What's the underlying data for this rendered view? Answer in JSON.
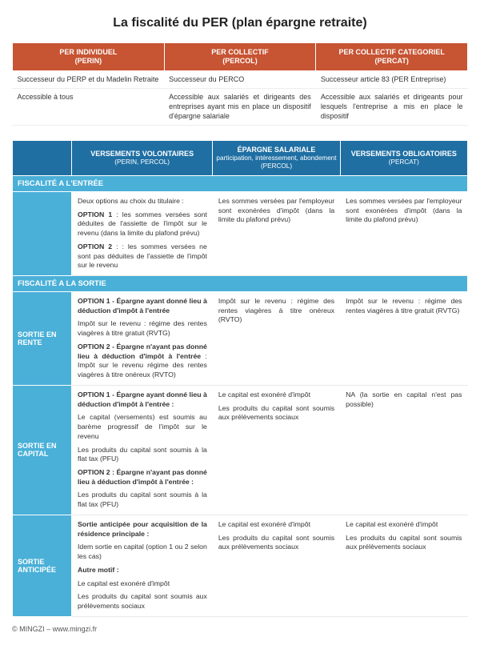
{
  "title": "La fiscalité du PER (plan épargne retraite)",
  "colors": {
    "header1_bg": "#c75433",
    "header2_bg": "#1f6fa3",
    "section_bg": "#4ab0d8",
    "text": "#333333",
    "bg": "#ffffff"
  },
  "table1": {
    "headers": [
      {
        "line1": "PER INDIVIDUEL",
        "line2": "(PERIN)"
      },
      {
        "line1": "PER COLLECTIF",
        "line2": "(PERCOL)"
      },
      {
        "line1": "PER COLLECTIF CATEGORIEL",
        "line2": "(PERCAT)"
      }
    ],
    "row1": [
      "Successeur du PERP et du Madelin Retraite",
      "Successeur du PERCO",
      "Successeur article 83 (PER Entreprise)"
    ],
    "row2": [
      "Accessible à tous",
      "Accessible aux salariés et dirigeants des entreprises ayant mis en place un dispositif d'épargne salariale",
      "Accessible aux salariés et dirigeants pour lesquels l'entreprise a mis en place le dispositif"
    ]
  },
  "table2": {
    "headers": [
      {
        "line1": "",
        "sub": ""
      },
      {
        "line1": "VERSEMENTS VOLONTAIRES",
        "sub": "(PERIN, PERCOL)"
      },
      {
        "line1": "ÉPARGNE SALARIALE",
        "sub": "participation, intéressement, abondement (PERCOL)"
      },
      {
        "line1": "VERSEMENTS OBLIGATOIRES",
        "sub": "(PERCAT)"
      }
    ],
    "section1": "FISCALITÉ A L'ENTRÉE",
    "entry": {
      "c1_intro": "Deux options au choix du titulaire :",
      "c1_opt1_label": "OPTION 1",
      "c1_opt1_text": " : les sommes versées sont déduites de l'assiette de l'impôt sur le revenu (dans la limite du plafond prévu)",
      "c1_opt2_label": "OPTION 2",
      "c1_opt2_text": " : : les sommes versées ne sont pas déduites de l'assiette de l'impôt sur le revenu",
      "c2": "Les sommes versées par l'employeur sont exonérées d'impôt (dans la limite du plafond prévu)",
      "c3": "Les sommes versées par l'employeur sont exonérées d'impôt (dans la limite du plafond prévu)"
    },
    "section2": "FISCALITÉ  A LA SORTIE",
    "rows": [
      {
        "label": "SORTIE EN RENTE",
        "c1_o1_label": "OPTION 1 - Épargne ayant donné lieu à déduction d'impôt à l'entrée",
        "c1_o1_text": "Impôt sur le revenu : régime des rentes viagères à titre gratuit (RVTG)",
        "c1_o2_label": "OPTION 2 - Épargne n'ayant pas donné lieu à déduction d'impôt à l'entrée",
        "c1_o2_text": " : Impôt sur le revenu régime des rentes viagères à titre onéreux (RVTO)",
        "c2": "Impôt sur le revenu : régime des rentes viagères à titre onéreux (RVTO)",
        "c3": "Impôt sur le revenu : régime des rentes viagères à titre gratuit (RVTG)"
      },
      {
        "label": "SORTIE EN CAPITAL",
        "c1_o1_label": "OPTION 1 - Épargne ayant donné lieu à déduction d'impôt à l'entrée :",
        "c1_o1_text_a": "Le capital (versements) est soumis au barème progressif de l'impôt sur le revenu",
        "c1_o1_text_b": "Les produits du capital sont soumis à la flat tax (PFU)",
        "c1_o2_label": "OPTION 2 : Épargne n'ayant pas donné lieu à déduction d'impôt à l'entrée :",
        "c1_o2_text": "Les produits du capital sont soumis à la flat tax (PFU)",
        "c2_a": "Le capital est exonéré d'impôt",
        "c2_b": "Les produits du capital sont soumis aux prélèvements sociaux",
        "c3": "NA (la sortie en capital n'est pas possible)"
      },
      {
        "label": "SORTIE ANTICIPÉE",
        "c1_a_label": "Sortie anticipée pour acquisition de la résidence principale :",
        "c1_a_text": "Idem sortie en capital (option 1 ou 2 selon les cas)",
        "c1_b_label": "Autre motif :",
        "c1_b_text_a": "Le capital est exonéré d'impôt",
        "c1_b_text_b": "Les produits du capital sont soumis aux prélèvements sociaux",
        "c2_a": "Le capital est exonéré d'impôt",
        "c2_b": "Les produits du capital sont soumis aux prélèvements sociaux",
        "c3_a": "Le capital est exonéré d'impôt",
        "c3_b": "Les produits du capital sont soumis aux prélèvements sociaux"
      }
    ]
  },
  "footer": "© MINGZI – www.mingzi.fr"
}
